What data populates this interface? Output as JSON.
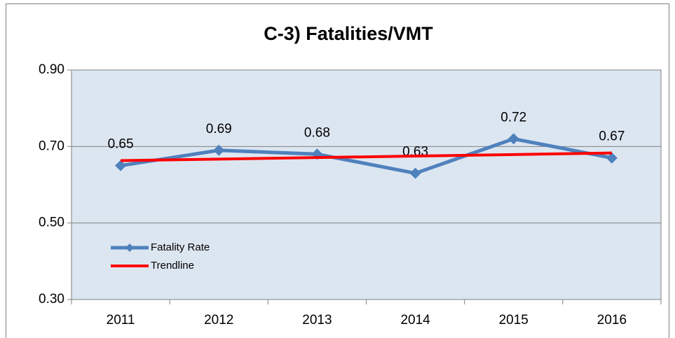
{
  "chart_data": {
    "type": "line",
    "title": "C-3) Fatalities/VMT",
    "categories": [
      "2011",
      "2012",
      "2013",
      "2014",
      "2015",
      "2016"
    ],
    "series": [
      {
        "name": "Fatality Rate",
        "color": "#4f81bd",
        "values": [
          0.65,
          0.69,
          0.68,
          0.63,
          0.72,
          0.67
        ],
        "markers": true,
        "data_labels": true
      },
      {
        "name": "Trendline",
        "color": "#ff0000",
        "values": [
          0.663,
          0.667,
          0.671,
          0.675,
          0.679,
          0.683
        ]
      }
    ],
    "ylim": [
      0.3,
      0.9
    ],
    "yticks": [
      {
        "value": 0.3,
        "label": "0.30"
      },
      {
        "value": 0.5,
        "label": "0.50"
      },
      {
        "value": 0.7,
        "label": "0.70"
      },
      {
        "value": 0.9,
        "label": "0.90"
      }
    ],
    "grid": true,
    "legend": "lower left",
    "plot_background": "#dce6f1"
  }
}
